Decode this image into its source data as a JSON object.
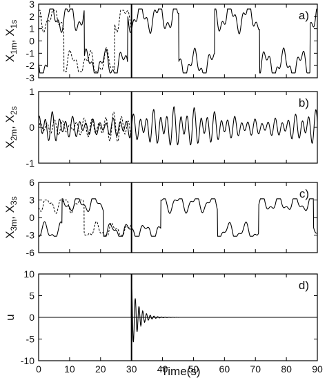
{
  "chart_data": {
    "type": "line",
    "x_title": "Time(s)",
    "x_range": [
      0,
      90
    ],
    "x_ticks": [
      "0",
      "10",
      "20",
      "30",
      "40",
      "50",
      "60",
      "70",
      "80",
      "90"
    ],
    "control_switch_time": 30,
    "panels": [
      {
        "id": "a",
        "label": "a)",
        "ylabel_parts": [
          {
            "text": "X",
            "sub": false
          },
          {
            "text": "1m",
            "sub": true
          },
          {
            "text": ", X",
            "sub": false
          },
          {
            "text": "1s",
            "sub": true
          }
        ],
        "ylim": [
          -3,
          3
        ],
        "y_ticks": [
          "-3",
          "-2",
          "-1",
          "0",
          "1",
          "2",
          "3"
        ],
        "series": [
          {
            "style": "solid",
            "kind": "duffing",
            "seed": 1,
            "amp": 2.6,
            "dc": 0.0,
            "t_start": 0,
            "t_end": 90
          },
          {
            "style": "dashed",
            "kind": "duffing",
            "seed": 2,
            "amp": 2.5,
            "dc": 0.0,
            "t_start": 0,
            "t_end": 30
          }
        ]
      },
      {
        "id": "b",
        "label": "b)",
        "ylabel_parts": [
          {
            "text": "X",
            "sub": false
          },
          {
            "text": "2m",
            "sub": true
          },
          {
            "text": ", X",
            "sub": false
          },
          {
            "text": "2s",
            "sub": true
          }
        ],
        "ylim": [
          -1,
          1
        ],
        "y_ticks": [
          "-1",
          "0",
          "1"
        ],
        "series": [
          {
            "style": "solid",
            "kind": "osc",
            "seed": 3,
            "amp": 0.55,
            "dc": 0.0,
            "t_start": 0,
            "t_end": 90
          },
          {
            "style": "dashed",
            "kind": "osc",
            "seed": 4,
            "amp": 0.5,
            "dc": 0.0,
            "t_start": 0,
            "t_end": 30
          }
        ]
      },
      {
        "id": "c",
        "label": "c)",
        "ylabel_parts": [
          {
            "text": "X",
            "sub": false
          },
          {
            "text": "3m",
            "sub": true
          },
          {
            "text": ", X",
            "sub": false
          },
          {
            "text": "3s",
            "sub": true
          }
        ],
        "ylim": [
          -6,
          6
        ],
        "y_ticks": [
          "-6",
          "-3",
          "0",
          "3",
          "6"
        ],
        "series": [
          {
            "style": "solid",
            "kind": "duffing",
            "seed": 5,
            "amp": 3.2,
            "dc": 0.0,
            "t_start": 0,
            "t_end": 90
          },
          {
            "style": "dashed",
            "kind": "duffing",
            "seed": 6,
            "amp": 3.0,
            "dc": 0.0,
            "t_start": 0,
            "t_end": 30
          }
        ]
      },
      {
        "id": "d",
        "label": "d)",
        "ylabel_parts": [
          {
            "text": "u",
            "sub": false
          }
        ],
        "ylim": [
          -10,
          10
        ],
        "y_ticks": [
          "-10",
          "-5",
          "0",
          "5",
          "10"
        ],
        "series": [
          {
            "style": "solid",
            "kind": "control",
            "seed": 7,
            "amp": 7.5,
            "decay": 0.45,
            "omega": 5.2,
            "t_start": 0,
            "t_end": 90
          }
        ]
      }
    ]
  }
}
